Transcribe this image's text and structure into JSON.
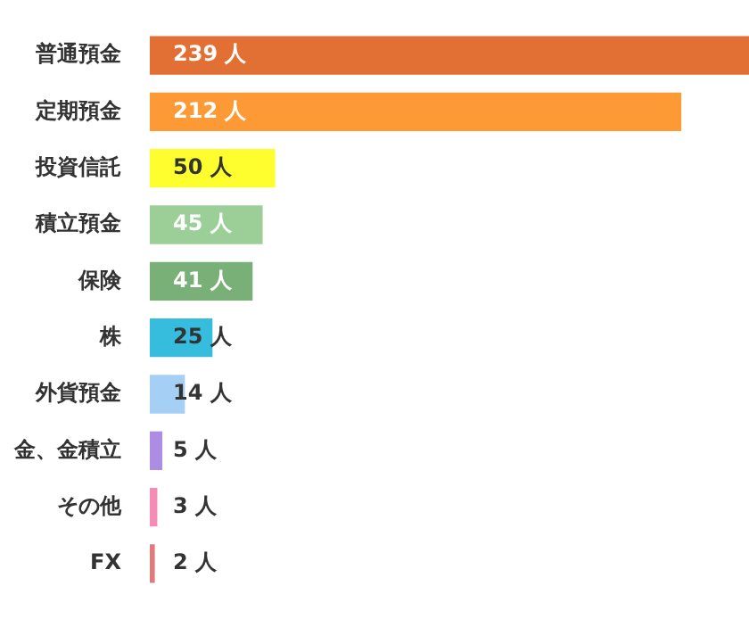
{
  "chart_data": {
    "type": "bar",
    "orientation": "horizontal",
    "categories": [
      "普通預金",
      "定期預金",
      "投資信託",
      "積立預金",
      "保険",
      "株",
      "外貨預金",
      "金、金積立",
      "その他",
      "FX"
    ],
    "values": [
      239,
      212,
      50,
      45,
      41,
      25,
      14,
      5,
      3,
      2
    ],
    "colors": [
      "#e26f33",
      "#fd9a35",
      "#fefe2f",
      "#9ccf98",
      "#78b077",
      "#36bcdc",
      "#a6cff6",
      "#ad8ce3",
      "#f68bb6",
      "#e07b7b"
    ],
    "value_labels": [
      "239 人",
      "212 人",
      "50 人",
      "45 人",
      "41 人",
      "25 人",
      "14 人",
      "5 人",
      "3 人",
      "2 人"
    ],
    "legend": false
  }
}
